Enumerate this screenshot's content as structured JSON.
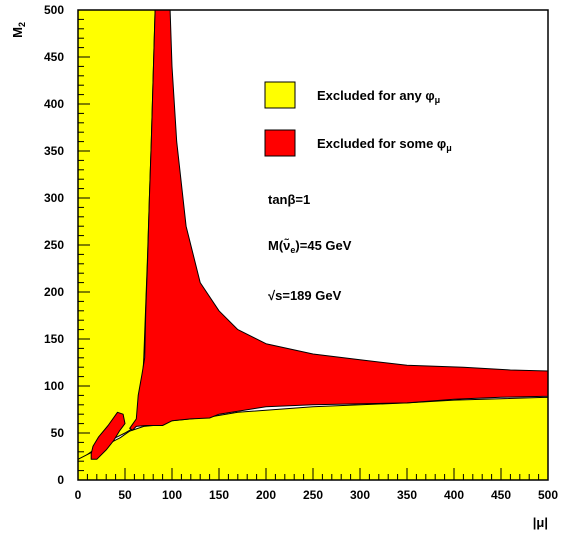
{
  "chart_data": {
    "type": "area",
    "xlabel": "|μ|",
    "ylabel": "M",
    "ylabel_sub": "2",
    "xlim": [
      0,
      500
    ],
    "ylim": [
      0,
      500
    ],
    "x_ticks": [
      0,
      50,
      100,
      150,
      200,
      250,
      300,
      350,
      400,
      450,
      500
    ],
    "y_ticks": [
      0,
      50,
      100,
      150,
      200,
      250,
      300,
      350,
      400,
      450,
      500
    ],
    "grid": false,
    "legend_position": "top-right",
    "colors": {
      "excluded_any": "#ffff00",
      "excluded_some": "#ff0000",
      "background": "#ffffff"
    },
    "series": [
      {
        "name": "Excluded for any φμ",
        "legend_main": "Excluded for any φ",
        "legend_sub": "μ",
        "color": "#ffff00",
        "region": [
          [
            0,
            0
          ],
          [
            0,
            500
          ],
          [
            82,
            500
          ],
          [
            80,
            430
          ],
          [
            78,
            360
          ],
          [
            76,
            300
          ],
          [
            74,
            240
          ],
          [
            72,
            185
          ],
          [
            70,
            130
          ],
          [
            68,
            95
          ],
          [
            65,
            68
          ],
          [
            62,
            57
          ],
          [
            50,
            50
          ],
          [
            40,
            45
          ],
          [
            28,
            40
          ],
          [
            14,
            30
          ],
          [
            0,
            20
          ],
          [
            0,
            0
          ]
        ],
        "lower_region": [
          [
            0,
            0
          ],
          [
            0,
            22
          ],
          [
            45,
            45
          ],
          [
            55,
            52
          ],
          [
            70,
            57
          ],
          [
            80,
            58
          ],
          [
            100,
            63
          ],
          [
            140,
            67
          ],
          [
            170,
            72
          ],
          [
            250,
            78
          ],
          [
            350,
            82
          ],
          [
            400,
            85
          ],
          [
            500,
            88
          ],
          [
            500,
            0
          ]
        ]
      },
      {
        "name": "Excluded for some φμ",
        "legend_main": "Excluded for some φ",
        "legend_sub": "μ",
        "color": "#ff0000",
        "region": [
          [
            82,
            500
          ],
          [
            80,
            430
          ],
          [
            78,
            360
          ],
          [
            76,
            300
          ],
          [
            74,
            234
          ],
          [
            72,
            178
          ],
          [
            71,
            130
          ],
          [
            68,
            112
          ],
          [
            64,
            90
          ],
          [
            62,
            65
          ],
          [
            55,
            55
          ],
          [
            58,
            53
          ],
          [
            62,
            57
          ],
          [
            72,
            58
          ],
          [
            80,
            58
          ],
          [
            90,
            58
          ],
          [
            100,
            63
          ],
          [
            120,
            65
          ],
          [
            140,
            66
          ],
          [
            150,
            70
          ],
          [
            200,
            78
          ],
          [
            250,
            80
          ],
          [
            350,
            82
          ],
          [
            400,
            86
          ],
          [
            450,
            88
          ],
          [
            500,
            89
          ],
          [
            500,
            116
          ],
          [
            460,
            117
          ],
          [
            410,
            120
          ],
          [
            350,
            122
          ],
          [
            300,
            128
          ],
          [
            250,
            134
          ],
          [
            200,
            145
          ],
          [
            170,
            160
          ],
          [
            150,
            180
          ],
          [
            130,
            210
          ],
          [
            115,
            270
          ],
          [
            105,
            360
          ],
          [
            100,
            440
          ],
          [
            98,
            500
          ]
        ],
        "island": [
          [
            14,
            22
          ],
          [
            20,
            22
          ],
          [
            30,
            32
          ],
          [
            38,
            42
          ],
          [
            44,
            52
          ],
          [
            50,
            60
          ],
          [
            48,
            70
          ],
          [
            42,
            72
          ],
          [
            32,
            58
          ],
          [
            22,
            46
          ],
          [
            16,
            36
          ],
          [
            14,
            28
          ]
        ]
      }
    ],
    "annotations": {
      "tanb": "tanβ=1",
      "mass_prefix": "M(",
      "mass_symbol": "ν̃",
      "mass_sub": "e",
      "mass_suffix": ")=45 GeV",
      "sqrts": "√s=189 GeV"
    }
  }
}
